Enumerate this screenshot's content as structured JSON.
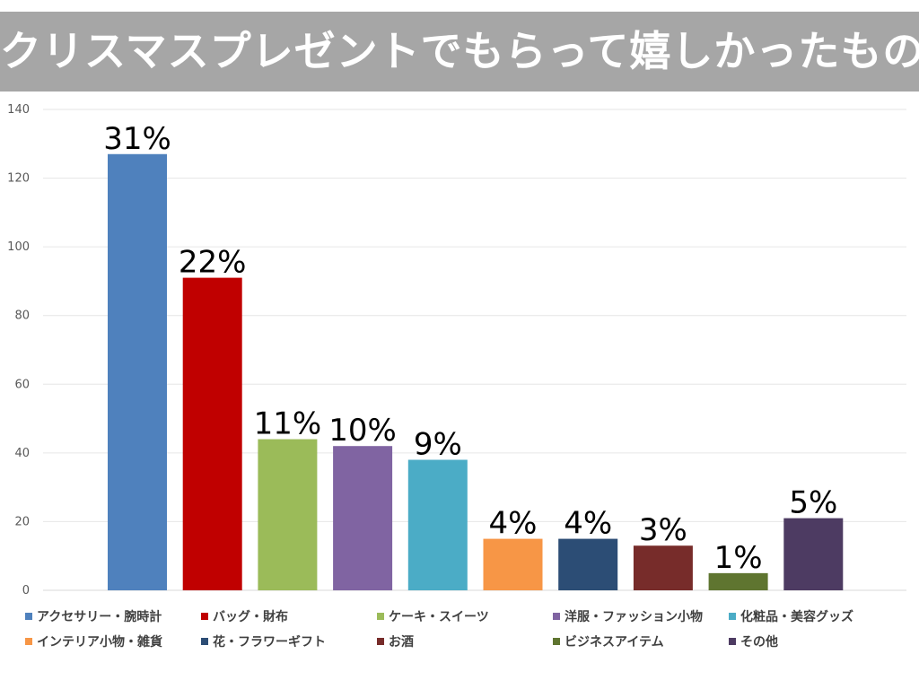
{
  "title": "クリスマスプレゼントでもらって嬉しかったもの",
  "chart_data": {
    "type": "bar",
    "title": "クリスマスプレゼントでもらって嬉しかったもの",
    "xlabel": "",
    "ylabel": "",
    "ylim": [
      0,
      140
    ],
    "yticks": [
      0,
      20,
      40,
      60,
      80,
      100,
      120,
      140
    ],
    "grid": true,
    "legend_position": "bottom",
    "categories": [
      "アクセサリー・腕時計",
      "バッグ・財布",
      "ケーキ・スイーツ",
      "洋服・ファッション小物",
      "化粧品・美容グッズ",
      "インテリア小物・雑貨",
      "花・フラワーギフト",
      "お酒",
      "ビジネスアイテム",
      "その他"
    ],
    "values": [
      127,
      91,
      44,
      42,
      38,
      15,
      15,
      13,
      5,
      21
    ],
    "data_labels": [
      "31%",
      "22%",
      "11%",
      "10%",
      "9%",
      "4%",
      "4%",
      "3%",
      "1%",
      "5%"
    ],
    "colors": [
      "#4f81bd",
      "#c00000",
      "#9bbb59",
      "#8064a2",
      "#4bacc6",
      "#f79646",
      "#2c4d75",
      "#772c2a",
      "#5f7530",
      "#4d3b62"
    ]
  }
}
